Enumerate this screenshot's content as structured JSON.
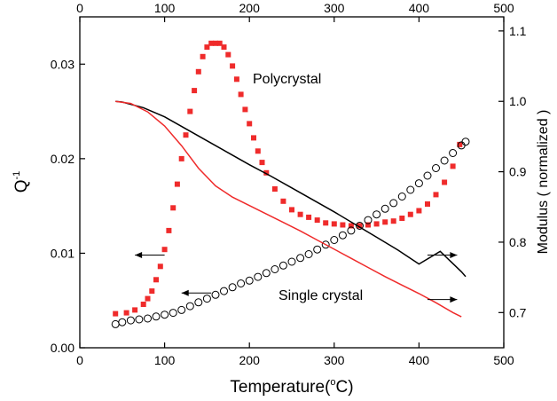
{
  "chart_data": {
    "type": "scatter",
    "title": "",
    "xlabel": "Temperature(°C)",
    "xlabel_parts": {
      "main": "Temperature(",
      "sup": "o",
      "tail": "C)"
    },
    "ylabel_left": "Q-1",
    "ylabel_left_parts": {
      "main": "Q",
      "sup": "-1"
    },
    "ylabel_right": "Modulus ( normalized )",
    "xlim": [
      0,
      500
    ],
    "ylim_left": [
      0,
      0.035
    ],
    "ylim_right": [
      0.65,
      1.12
    ],
    "x_ticks": [
      0,
      100,
      200,
      300,
      400,
      500
    ],
    "x_tick_labels": [
      "0",
      "100",
      "200",
      "300",
      "400",
      "500"
    ],
    "y_left_ticks": [
      0,
      0.01,
      0.02,
      0.03
    ],
    "y_left_tick_labels": [
      "0.00",
      "0.01",
      "0.02",
      "0.03"
    ],
    "y_right_ticks": [
      0.7,
      0.8,
      0.9,
      1.0,
      1.1
    ],
    "y_right_tick_labels": [
      "0.7",
      "0.8",
      "0.9",
      "1.0",
      "1.1"
    ],
    "grid": false,
    "annotations": {
      "polycrystal": "Polycrystal",
      "single_crystal": "Single crystal"
    },
    "arrows": [
      {
        "direction": "left",
        "x": [
          65,
          100
        ],
        "y_axis": "left",
        "y": 0.0098
      },
      {
        "direction": "left",
        "x": [
          120,
          155
        ],
        "y_axis": "left",
        "y": 0.0058
      },
      {
        "direction": "right",
        "x": [
          410,
          445
        ],
        "y_axis": "left",
        "y": 0.0098
      },
      {
        "direction": "right",
        "x": [
          410,
          445
        ],
        "y_axis": "left",
        "y": 0.0051
      }
    ],
    "series": [
      {
        "name": "Polycrystal",
        "marker": "square",
        "axis": "left",
        "color": "#ef2b2b",
        "x": [
          42,
          55,
          65,
          75,
          80,
          85,
          90,
          95,
          100,
          105,
          110,
          115,
          120,
          125,
          130,
          135,
          140,
          145,
          150,
          155,
          160,
          165,
          170,
          175,
          180,
          185,
          190,
          195,
          200,
          205,
          210,
          215,
          220,
          230,
          240,
          250,
          260,
          270,
          280,
          290,
          300,
          310,
          320,
          330,
          340,
          350,
          360,
          370,
          380,
          390,
          400,
          410,
          420,
          430,
          440,
          448
        ],
        "y": [
          0.0036,
          0.0037,
          0.004,
          0.0046,
          0.0052,
          0.006,
          0.0072,
          0.0086,
          0.0104,
          0.0124,
          0.0148,
          0.0173,
          0.02,
          0.0225,
          0.025,
          0.0272,
          0.0292,
          0.0308,
          0.0318,
          0.0322,
          0.0322,
          0.0322,
          0.0318,
          0.031,
          0.0298,
          0.0284,
          0.0268,
          0.0252,
          0.0237,
          0.0222,
          0.0208,
          0.0196,
          0.0185,
          0.0168,
          0.0155,
          0.0146,
          0.0141,
          0.0138,
          0.0135,
          0.0132,
          0.0131,
          0.013,
          0.0129,
          0.0129,
          0.013,
          0.0131,
          0.0133,
          0.0134,
          0.0137,
          0.0141,
          0.0145,
          0.0152,
          0.0162,
          0.0175,
          0.0192,
          0.0215
        ]
      },
      {
        "name": "Single crystal",
        "marker": "open-circle",
        "axis": "left",
        "color": "#000000",
        "x": [
          42,
          50,
          60,
          70,
          80,
          90,
          100,
          110,
          120,
          130,
          140,
          150,
          160,
          170,
          180,
          190,
          200,
          210,
          220,
          230,
          240,
          250,
          260,
          270,
          280,
          290,
          300,
          310,
          320,
          330,
          340,
          350,
          360,
          370,
          380,
          390,
          400,
          410,
          420,
          430,
          440,
          450,
          455
        ],
        "y": [
          0.0025,
          0.0027,
          0.0029,
          0.003,
          0.0031,
          0.0033,
          0.0035,
          0.0037,
          0.004,
          0.0044,
          0.0048,
          0.0052,
          0.0056,
          0.006,
          0.0064,
          0.0068,
          0.0071,
          0.0075,
          0.0079,
          0.0083,
          0.0087,
          0.0091,
          0.0095,
          0.0099,
          0.0104,
          0.0109,
          0.0114,
          0.0119,
          0.0124,
          0.0129,
          0.0135,
          0.0141,
          0.0147,
          0.0153,
          0.016,
          0.0167,
          0.0174,
          0.0182,
          0.019,
          0.0198,
          0.0206,
          0.0214,
          0.0218
        ]
      },
      {
        "name": "Polycrystal modulus",
        "marker": "line",
        "axis": "right",
        "color": "#000000",
        "x": [
          42,
          50,
          75,
          100,
          125,
          150,
          175,
          200,
          225,
          250,
          275,
          300,
          325,
          350,
          375,
          400,
          425,
          450,
          455
        ],
        "y": [
          1.0,
          0.999,
          0.991,
          0.978,
          0.961,
          0.944,
          0.927,
          0.91,
          0.894,
          0.877,
          0.86,
          0.843,
          0.825,
          0.807,
          0.789,
          0.769,
          0.787,
          0.758,
          0.751
        ]
      },
      {
        "name": "Single crystal modulus",
        "marker": "line",
        "axis": "right",
        "color": "#ef2b2b",
        "x": [
          42,
          60,
          80,
          100,
          120,
          140,
          160,
          180,
          200,
          220,
          240,
          260,
          280,
          300,
          320,
          340,
          360,
          380,
          400,
          420,
          440,
          450
        ],
        "y": [
          1.0,
          0.997,
          0.985,
          0.965,
          0.937,
          0.905,
          0.88,
          0.864,
          0.852,
          0.84,
          0.828,
          0.816,
          0.803,
          0.79,
          0.777,
          0.764,
          0.751,
          0.739,
          0.727,
          0.714,
          0.7,
          0.694
        ]
      }
    ]
  }
}
